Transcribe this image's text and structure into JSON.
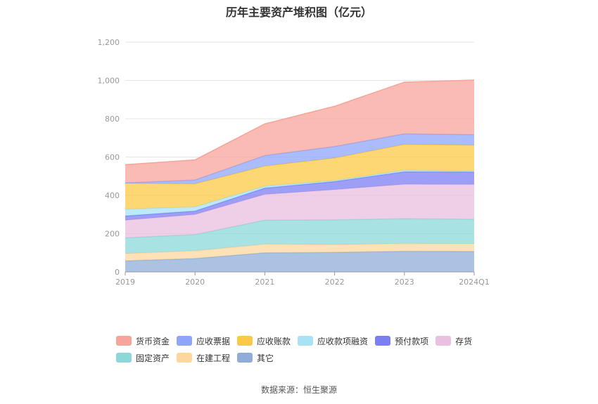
{
  "chart_data": {
    "type": "area",
    "stacked": true,
    "title": "历年主要资产堆积图（亿元）",
    "categories": [
      "2019",
      "2020",
      "2021",
      "2022",
      "2023",
      "2024Q1"
    ],
    "y_ticks": [
      "0",
      "200",
      "400",
      "600",
      "800",
      "1,000",
      "1,200"
    ],
    "ylim": [
      0,
      1200
    ],
    "grid": true,
    "legend_position": "bottom",
    "series": [
      {
        "name": "其它",
        "color": "#8fadd8",
        "values": [
          58,
          70,
          100,
          102,
          108,
          107
        ]
      },
      {
        "name": "在建工程",
        "color": "#fdd79e",
        "values": [
          38,
          40,
          45,
          40,
          40,
          40
        ]
      },
      {
        "name": "固定资产",
        "color": "#8cd8d8",
        "values": [
          82,
          85,
          125,
          130,
          130,
          128
        ]
      },
      {
        "name": "存货",
        "color": "#eabfe0",
        "values": [
          92,
          105,
          135,
          158,
          180,
          182
        ]
      },
      {
        "name": "预付款项",
        "color": "#7b7ff2",
        "values": [
          22,
          18,
          33,
          42,
          65,
          65
        ]
      },
      {
        "name": "应收款项融资",
        "color": "#a8e2f7",
        "values": [
          36,
          22,
          10,
          5,
          8,
          5
        ]
      },
      {
        "name": "应收账款",
        "color": "#fcc946",
        "values": [
          135,
          120,
          105,
          118,
          135,
          135
        ]
      },
      {
        "name": "应收票据",
        "color": "#8ea6fa",
        "values": [
          2,
          20,
          55,
          60,
          55,
          55
        ]
      },
      {
        "name": "货币资金",
        "color": "#f7a49b",
        "values": [
          95,
          105,
          165,
          210,
          270,
          285
        ]
      }
    ]
  },
  "legend": {
    "row1": [
      {
        "label": "货币资金",
        "color": "#f7a49b"
      },
      {
        "label": "应收票据",
        "color": "#8ea6fa"
      },
      {
        "label": "应收账款",
        "color": "#fcc946"
      },
      {
        "label": "应收款项融资",
        "color": "#a8e2f7"
      },
      {
        "label": "预付款项",
        "color": "#7b7ff2"
      },
      {
        "label": "存货",
        "color": "#eabfe0"
      }
    ],
    "row2": [
      {
        "label": "固定资产",
        "color": "#8cd8d8"
      },
      {
        "label": "在建工程",
        "color": "#fdd79e"
      },
      {
        "label": "其它",
        "color": "#8fadd8"
      }
    ]
  },
  "source": "数据来源：恒生聚源"
}
